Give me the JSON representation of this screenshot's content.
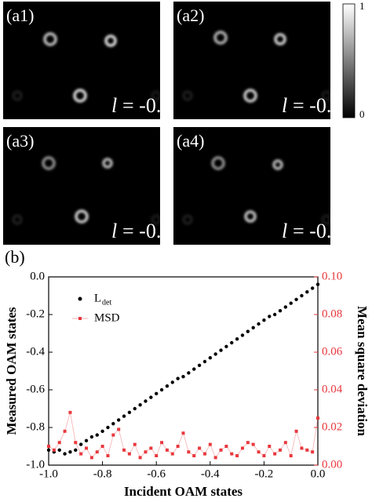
{
  "panels": [
    {
      "label": "(a1)",
      "symbol": "l",
      "value_text": "= -0."
    },
    {
      "label": "(a2)",
      "symbol": "l",
      "value_text": "= -0."
    },
    {
      "label": "(a3)",
      "symbol": "l",
      "value_text": "= -0."
    },
    {
      "label": "(a4)",
      "symbol": "l",
      "value_text": "= -0."
    }
  ],
  "colorbar": {
    "max": 1,
    "min": 0
  },
  "chart_data": {
    "type": "scatter",
    "panel_label": "(b)",
    "x_label": "Incident OAM states",
    "y_label": "Measured OAM states",
    "y2_label": "Mean square deviation",
    "xlim": [
      -1.0,
      0.0
    ],
    "ylim": [
      -1.0,
      0.0
    ],
    "y2lim": [
      0.0,
      0.1
    ],
    "xticks": [
      {
        "value": -1.0,
        "label": "-1.0"
      },
      {
        "value": -0.8,
        "label": "-0.8"
      },
      {
        "value": -0.6,
        "label": "-0.6"
      },
      {
        "value": -0.4,
        "label": "-0.4"
      },
      {
        "value": -0.2,
        "label": "-0.2"
      },
      {
        "value": 0.0,
        "label": "0.0"
      }
    ],
    "yticks": [
      {
        "value": 0.0,
        "label": "0.0"
      },
      {
        "value": -0.2,
        "label": "-0.2"
      },
      {
        "value": -0.4,
        "label": "-0.4"
      },
      {
        "value": -0.6,
        "label": "-0.6"
      },
      {
        "value": -0.8,
        "label": "-0.8"
      },
      {
        "value": -1.0,
        "label": "-1.0"
      }
    ],
    "y2ticks": [
      {
        "value": 0.0,
        "label": "0.00"
      },
      {
        "value": 0.02,
        "label": "0.02"
      },
      {
        "value": 0.04,
        "label": "0.04"
      },
      {
        "value": 0.06,
        "label": "0.06"
      },
      {
        "value": 0.08,
        "label": "0.08"
      },
      {
        "value": 0.1,
        "label": "0.10"
      }
    ],
    "x": [
      -1.0,
      -0.98,
      -0.96,
      -0.94,
      -0.92,
      -0.9,
      -0.88,
      -0.86,
      -0.84,
      -0.82,
      -0.8,
      -0.78,
      -0.76,
      -0.74,
      -0.72,
      -0.7,
      -0.68,
      -0.66,
      -0.64,
      -0.62,
      -0.6,
      -0.58,
      -0.56,
      -0.54,
      -0.52,
      -0.5,
      -0.48,
      -0.46,
      -0.44,
      -0.42,
      -0.4,
      -0.38,
      -0.36,
      -0.34,
      -0.32,
      -0.3,
      -0.28,
      -0.26,
      -0.24,
      -0.22,
      -0.2,
      -0.18,
      -0.16,
      -0.14,
      -0.12,
      -0.1,
      -0.08,
      -0.06,
      -0.04,
      -0.02,
      0.0
    ],
    "series": [
      {
        "name": "L",
        "name_sub": "det",
        "color": "#000000",
        "values": [
          -0.92,
          -0.93,
          -0.92,
          -0.94,
          -0.93,
          -0.92,
          -0.89,
          -0.87,
          -0.85,
          -0.84,
          -0.82,
          -0.8,
          -0.78,
          -0.76,
          -0.74,
          -0.72,
          -0.7,
          -0.68,
          -0.66,
          -0.64,
          -0.62,
          -0.6,
          -0.58,
          -0.56,
          -0.54,
          -0.53,
          -0.51,
          -0.49,
          -0.47,
          -0.45,
          -0.43,
          -0.41,
          -0.39,
          -0.37,
          -0.35,
          -0.33,
          -0.31,
          -0.29,
          -0.27,
          -0.25,
          -0.23,
          -0.21,
          -0.2,
          -0.18,
          -0.16,
          -0.14,
          -0.12,
          -0.1,
          -0.08,
          -0.06,
          -0.04
        ]
      },
      {
        "name": "MSD",
        "color": "#e8383d",
        "axis": "y2",
        "values": [
          0.01,
          0.008,
          0.012,
          0.018,
          0.028,
          0.012,
          0.006,
          0.009,
          0.004,
          0.007,
          0.01,
          0.005,
          0.016,
          0.019,
          0.008,
          0.006,
          0.011,
          0.004,
          0.007,
          0.009,
          0.005,
          0.012,
          0.008,
          0.006,
          0.01,
          0.017,
          0.007,
          0.005,
          0.009,
          0.006,
          0.011,
          0.004,
          0.008,
          0.01,
          0.006,
          0.005,
          0.009,
          0.012,
          0.011,
          0.007,
          0.005,
          0.01,
          0.006,
          0.008,
          0.012,
          0.005,
          0.018,
          0.009,
          0.008,
          0.007,
          0.025
        ]
      }
    ]
  }
}
